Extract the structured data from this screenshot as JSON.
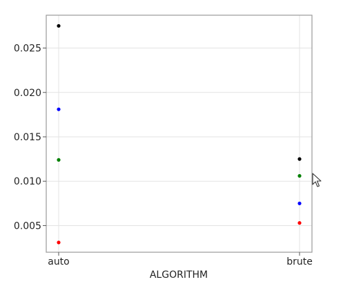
{
  "chart_data": {
    "type": "scatter",
    "title": "",
    "xlabel": "ALGORITHM",
    "ylabel": "",
    "categories": [
      "auto",
      "brute"
    ],
    "ylim": [
      0.002,
      0.0287
    ],
    "yticks": [
      0.005,
      0.01,
      0.015,
      0.02,
      0.025
    ],
    "ytick_labels": [
      "0.005",
      "0.010",
      "0.015",
      "0.020",
      "0.025"
    ],
    "grid": true,
    "legend": "none",
    "series": [
      {
        "color": "#000000",
        "values": [
          0.0275,
          0.0125
        ]
      },
      {
        "color": "#0000ff",
        "values": [
          0.0181,
          0.0075
        ]
      },
      {
        "color": "#008000",
        "values": [
          0.0124,
          0.0106
        ]
      },
      {
        "color": "#ff0000",
        "values": [
          0.0031,
          0.0053
        ]
      }
    ]
  },
  "ui": {
    "cursor_icon": "mouse-pointer-icon"
  }
}
